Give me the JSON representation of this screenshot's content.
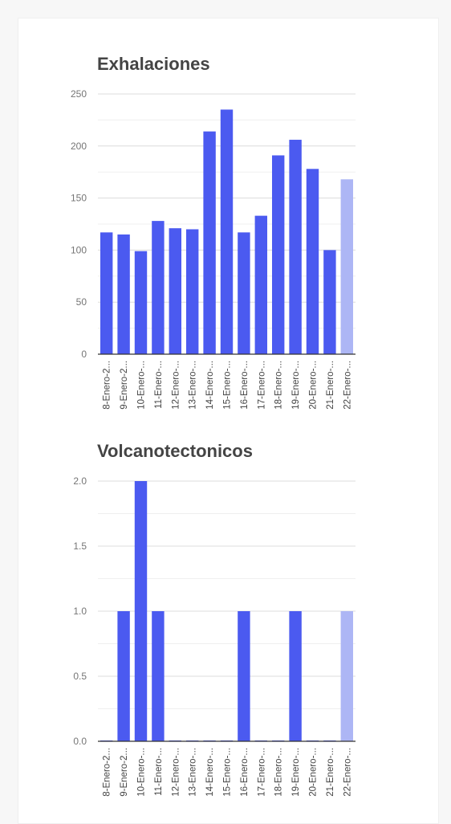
{
  "colors": {
    "bar": "#4b5af0",
    "bar_highlight": "#adb6f5",
    "grid": "#dcdcdc",
    "axis": "#333333"
  },
  "chart_data": [
    {
      "type": "bar",
      "title": "Exhalaciones",
      "xlabel": "",
      "ylabel": "",
      "ylim": [
        0,
        250
      ],
      "yticks": [
        "0",
        "50",
        "100",
        "150",
        "200",
        "250"
      ],
      "yticks_values": [
        0,
        50,
        100,
        150,
        200,
        250
      ],
      "grid": true,
      "categories": [
        "8-Enero-2...",
        "9-Enero-2...",
        "10-Enero-...",
        "11-Enero-...",
        "12-Enero-...",
        "13-Enero-...",
        "14-Enero-...",
        "15-Enero-...",
        "16-Enero-...",
        "17-Enero-...",
        "18-Enero-...",
        "19-Enero-...",
        "20-Enero-...",
        "21-Enero-...",
        "22-Enero-..."
      ],
      "values": [
        117,
        115,
        99,
        128,
        121,
        120,
        214,
        235,
        117,
        133,
        191,
        206,
        178,
        100,
        168
      ],
      "highlight_index": 14
    },
    {
      "type": "bar",
      "title": "Volcanotectonicos",
      "xlabel": "",
      "ylabel": "",
      "ylim": [
        0,
        2
      ],
      "yticks": [
        "0.0",
        "0.5",
        "1.0",
        "1.5",
        "2.0"
      ],
      "yticks_values": [
        0,
        0.5,
        1,
        1.5,
        2
      ],
      "grid": true,
      "categories": [
        "8-Enero-2...",
        "9-Enero-2...",
        "10-Enero-...",
        "11-Enero-...",
        "12-Enero-...",
        "13-Enero-...",
        "14-Enero-...",
        "15-Enero-...",
        "16-Enero-...",
        "17-Enero-...",
        "18-Enero-...",
        "19-Enero-...",
        "20-Enero-...",
        "21-Enero-...",
        "22-Enero-..."
      ],
      "values": [
        0,
        1,
        2,
        1,
        0,
        0,
        0,
        0,
        1,
        0,
        0,
        1,
        0,
        0,
        1
      ],
      "highlight_index": 14
    }
  ]
}
